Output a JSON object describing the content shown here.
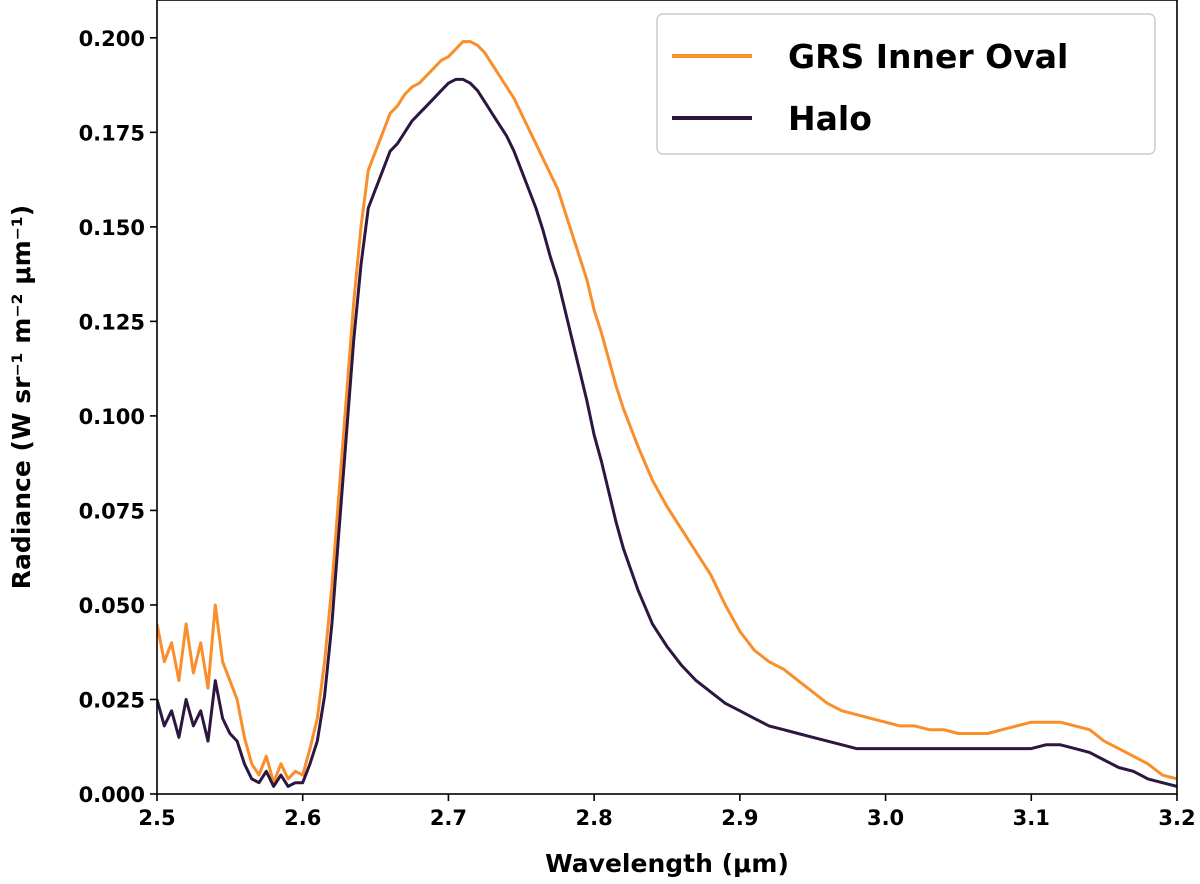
{
  "chart_data": {
    "type": "line",
    "xlabel": "Wavelength (μm)",
    "ylabel": "Radiance (W sr⁻¹ m⁻² μm⁻¹)",
    "xlim": [
      2.5,
      3.2
    ],
    "ylim": [
      0.0,
      0.21
    ],
    "x_ticks": [
      "2.5",
      "2.6",
      "2.7",
      "2.8",
      "2.9",
      "3.0",
      "3.1",
      "3.2"
    ],
    "y_ticks": [
      "0.000",
      "0.025",
      "0.050",
      "0.075",
      "0.100",
      "0.125",
      "0.150",
      "0.175",
      "0.200"
    ],
    "grid": false,
    "legend_position": "top-right",
    "series": [
      {
        "name": "GRS Inner Oval",
        "color": "#f98e2b",
        "x": [
          2.5,
          2.505,
          2.51,
          2.515,
          2.52,
          2.525,
          2.53,
          2.535,
          2.54,
          2.545,
          2.55,
          2.555,
          2.56,
          2.565,
          2.57,
          2.575,
          2.58,
          2.585,
          2.59,
          2.595,
          2.6,
          2.605,
          2.61,
          2.615,
          2.62,
          2.625,
          2.63,
          2.635,
          2.64,
          2.645,
          2.65,
          2.655,
          2.66,
          2.665,
          2.67,
          2.675,
          2.68,
          2.685,
          2.69,
          2.695,
          2.7,
          2.705,
          2.71,
          2.715,
          2.72,
          2.725,
          2.73,
          2.735,
          2.74,
          2.745,
          2.75,
          2.755,
          2.76,
          2.765,
          2.77,
          2.775,
          2.78,
          2.785,
          2.79,
          2.795,
          2.8,
          2.805,
          2.81,
          2.815,
          2.82,
          2.83,
          2.84,
          2.85,
          2.86,
          2.87,
          2.88,
          2.89,
          2.9,
          2.91,
          2.92,
          2.93,
          2.94,
          2.95,
          2.96,
          2.97,
          2.98,
          2.99,
          3.0,
          3.01,
          3.02,
          3.03,
          3.04,
          3.05,
          3.06,
          3.07,
          3.08,
          3.09,
          3.1,
          3.11,
          3.12,
          3.13,
          3.14,
          3.15,
          3.16,
          3.17,
          3.18,
          3.19,
          3.2
        ],
        "values": [
          0.045,
          0.035,
          0.04,
          0.03,
          0.045,
          0.032,
          0.04,
          0.028,
          0.05,
          0.035,
          0.03,
          0.025,
          0.015,
          0.008,
          0.005,
          0.01,
          0.003,
          0.008,
          0.004,
          0.006,
          0.005,
          0.012,
          0.02,
          0.035,
          0.055,
          0.08,
          0.105,
          0.13,
          0.15,
          0.165,
          0.17,
          0.175,
          0.18,
          0.182,
          0.185,
          0.187,
          0.188,
          0.19,
          0.192,
          0.194,
          0.195,
          0.197,
          0.199,
          0.199,
          0.198,
          0.196,
          0.193,
          0.19,
          0.187,
          0.184,
          0.18,
          0.176,
          0.172,
          0.168,
          0.164,
          0.16,
          0.154,
          0.148,
          0.142,
          0.136,
          0.128,
          0.122,
          0.115,
          0.108,
          0.102,
          0.092,
          0.083,
          0.076,
          0.07,
          0.064,
          0.058,
          0.05,
          0.043,
          0.038,
          0.035,
          0.033,
          0.03,
          0.027,
          0.024,
          0.022,
          0.021,
          0.02,
          0.019,
          0.018,
          0.018,
          0.017,
          0.017,
          0.016,
          0.016,
          0.016,
          0.017,
          0.018,
          0.019,
          0.019,
          0.019,
          0.018,
          0.017,
          0.014,
          0.012,
          0.01,
          0.008,
          0.005,
          0.004
        ]
      },
      {
        "name": "Halo",
        "color": "#2d1640",
        "x": [
          2.5,
          2.505,
          2.51,
          2.515,
          2.52,
          2.525,
          2.53,
          2.535,
          2.54,
          2.545,
          2.55,
          2.555,
          2.56,
          2.565,
          2.57,
          2.575,
          2.58,
          2.585,
          2.59,
          2.595,
          2.6,
          2.605,
          2.61,
          2.615,
          2.62,
          2.625,
          2.63,
          2.635,
          2.64,
          2.645,
          2.65,
          2.655,
          2.66,
          2.665,
          2.67,
          2.675,
          2.68,
          2.685,
          2.69,
          2.695,
          2.7,
          2.705,
          2.71,
          2.715,
          2.72,
          2.725,
          2.73,
          2.735,
          2.74,
          2.745,
          2.75,
          2.755,
          2.76,
          2.765,
          2.77,
          2.775,
          2.78,
          2.785,
          2.79,
          2.795,
          2.8,
          2.805,
          2.81,
          2.815,
          2.82,
          2.83,
          2.84,
          2.85,
          2.86,
          2.87,
          2.88,
          2.89,
          2.9,
          2.91,
          2.92,
          2.93,
          2.94,
          2.95,
          2.96,
          2.97,
          2.98,
          2.99,
          3.0,
          3.01,
          3.02,
          3.03,
          3.04,
          3.05,
          3.06,
          3.07,
          3.08,
          3.09,
          3.1,
          3.11,
          3.12,
          3.13,
          3.14,
          3.15,
          3.16,
          3.17,
          3.18,
          3.19,
          3.2
        ],
        "values": [
          0.025,
          0.018,
          0.022,
          0.015,
          0.025,
          0.018,
          0.022,
          0.014,
          0.03,
          0.02,
          0.016,
          0.014,
          0.008,
          0.004,
          0.003,
          0.006,
          0.002,
          0.005,
          0.002,
          0.003,
          0.003,
          0.008,
          0.014,
          0.026,
          0.045,
          0.07,
          0.095,
          0.12,
          0.14,
          0.155,
          0.16,
          0.165,
          0.17,
          0.172,
          0.175,
          0.178,
          0.18,
          0.182,
          0.184,
          0.186,
          0.188,
          0.189,
          0.189,
          0.188,
          0.186,
          0.183,
          0.18,
          0.177,
          0.174,
          0.17,
          0.165,
          0.16,
          0.155,
          0.149,
          0.142,
          0.136,
          0.128,
          0.12,
          0.112,
          0.104,
          0.095,
          0.088,
          0.08,
          0.072,
          0.065,
          0.054,
          0.045,
          0.039,
          0.034,
          0.03,
          0.027,
          0.024,
          0.022,
          0.02,
          0.018,
          0.017,
          0.016,
          0.015,
          0.014,
          0.013,
          0.012,
          0.012,
          0.012,
          0.012,
          0.012,
          0.012,
          0.012,
          0.012,
          0.012,
          0.012,
          0.012,
          0.012,
          0.012,
          0.013,
          0.013,
          0.012,
          0.011,
          0.009,
          0.007,
          0.006,
          0.004,
          0.003,
          0.002
        ]
      }
    ]
  }
}
